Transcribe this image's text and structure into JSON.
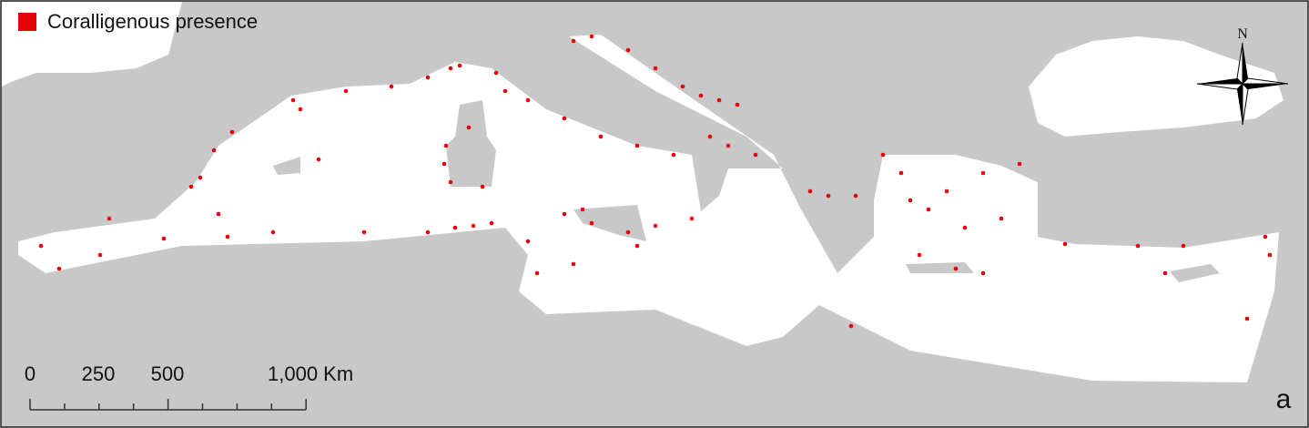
{
  "legend": {
    "label": "Coralligenous presence"
  },
  "north_arrow": {
    "label": "N"
  },
  "scale_bar": {
    "labels": [
      "0",
      "250",
      "500",
      "1,000 Km"
    ]
  },
  "panel_label": "a"
}
